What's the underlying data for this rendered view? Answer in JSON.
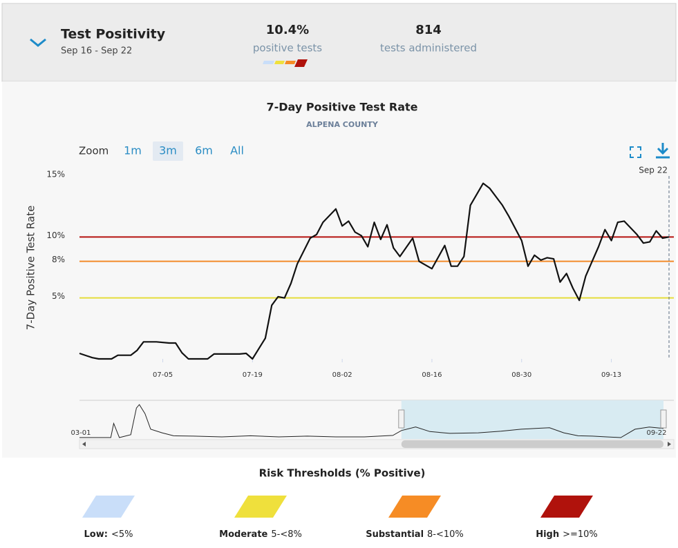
{
  "header": {
    "title": "Test Positivity",
    "date_range": "Sep 16 - Sep 22",
    "stats": [
      {
        "value": "10.4%",
        "label": "positive tests"
      },
      {
        "value": "814",
        "label": "tests administered"
      }
    ]
  },
  "chart_data": {
    "type": "line",
    "title": "7-Day Positive Test Rate",
    "subtitle": "ALPENA COUNTY",
    "y_label": "7-Day Positive Test Rate",
    "zoom": {
      "label": "Zoom",
      "options": [
        "1m",
        "3m",
        "6m",
        "All"
      ],
      "selected": 1
    },
    "crosshair_label": "Sep 22",
    "x": [
      "06-22",
      "06-24",
      "06-25",
      "06-27",
      "06-28",
      "06-30",
      "07-01",
      "07-02",
      "07-04",
      "07-06",
      "07-07",
      "07-08",
      "07-09",
      "07-12",
      "07-13",
      "07-17",
      "07-18",
      "07-19",
      "07-21",
      "07-22",
      "07-23",
      "07-24",
      "07-25",
      "07-26",
      "07-28",
      "07-29",
      "07-30",
      "08-01",
      "08-02",
      "08-03",
      "08-04",
      "08-05",
      "08-06",
      "08-07",
      "08-08",
      "08-09",
      "08-10",
      "08-11",
      "08-13",
      "08-14",
      "08-16",
      "08-18",
      "08-19",
      "08-20",
      "08-21",
      "08-22",
      "08-24",
      "08-25",
      "08-27",
      "08-28",
      "08-30",
      "08-31",
      "09-01",
      "09-02",
      "09-03",
      "09-04",
      "09-05",
      "09-06",
      "09-07",
      "09-08",
      "09-09",
      "09-11",
      "09-12",
      "09-13",
      "09-14",
      "09-15",
      "09-17",
      "09-18",
      "09-19",
      "09-20",
      "09-21",
      "09-22"
    ],
    "series": [
      {
        "color": "#111111",
        "values": [
          0.45,
          0.1,
          0,
          0,
          0.3,
          0.3,
          0.7,
          1.4,
          1.4,
          1.3,
          1.3,
          0.5,
          0,
          0,
          0.4,
          0.4,
          0.45,
          0,
          1.7,
          4.4,
          5.1,
          5.0,
          6.2,
          7.8,
          9.9,
          10.2,
          11.2,
          12.3,
          10.9,
          11.3,
          10.4,
          10.1,
          9.2,
          11.2,
          9.8,
          11.0,
          9.1,
          8.4,
          9.9,
          8.0,
          7.4,
          9.3,
          7.6,
          7.6,
          8.4,
          12.6,
          14.4,
          14.0,
          12.6,
          11.7,
          9.7,
          7.6,
          8.5,
          8.1,
          8.3,
          8.2,
          6.3,
          7.0,
          5.8,
          4.8,
          6.8,
          9.2,
          10.6,
          9.7,
          11.2,
          11.3,
          10.2,
          9.5,
          9.6,
          10.5,
          9.9,
          10.0
        ]
      }
    ],
    "xlim": [
      "06-22",
      "09-22"
    ],
    "xticks": [
      "07-05",
      "07-19",
      "08-02",
      "08-16",
      "08-30",
      "09-13"
    ],
    "ylim": [
      0,
      15
    ],
    "yticks": [
      {
        "value": 5,
        "label": "5%"
      },
      {
        "value": 8,
        "label": "8%"
      },
      {
        "value": 10,
        "label": "10%"
      },
      {
        "value": 15,
        "label": "15%"
      }
    ],
    "threshold_lines": [
      {
        "value": 5,
        "color": "#e5dd3a"
      },
      {
        "value": 8,
        "color": "#f28a2a"
      },
      {
        "value": 10,
        "color": "#b5120f"
      }
    ],
    "navigator": {
      "x": [
        "03-01",
        "03-12",
        "03-13",
        "03-15",
        "03-19",
        "03-21",
        "03-22",
        "03-24",
        "03-26",
        "03-30",
        "04-03",
        "04-10",
        "04-20",
        "04-30",
        "05-10",
        "05-20",
        "05-30",
        "06-09",
        "06-19",
        "06-22",
        "06-27",
        "07-02",
        "07-09",
        "07-19",
        "07-27",
        "08-03",
        "08-08",
        "08-13",
        "08-18",
        "08-23",
        "08-28",
        "09-02",
        "09-07",
        "09-12",
        "09-17",
        "09-22"
      ],
      "values": [
        0,
        0,
        11.8,
        0,
        2.4,
        24.7,
        27.6,
        20,
        7,
        4,
        1.5,
        1.2,
        0.6,
        1.5,
        0.6,
        1.2,
        0.6,
        0.6,
        1.8,
        5.9,
        8.8,
        5,
        3.5,
        4,
        5.3,
        7,
        7.6,
        8.2,
        4,
        1.5,
        1.2,
        0.6,
        0,
        7,
        8.8,
        7.6
      ],
      "xlim": [
        "03-01",
        "09-22"
      ],
      "ylim": [
        0,
        30
      ],
      "color": "#222222",
      "edge_labels": [
        "03-01",
        "09-22"
      ]
    }
  },
  "legend": {
    "title": "Risk Thresholds (% Positive)",
    "items": [
      {
        "name": "Low:",
        "range": "<5%",
        "color": "#c9def9"
      },
      {
        "name": "Moderate",
        "range": "5-<8%",
        "color": "#efe03c"
      },
      {
        "name": "Substantial",
        "range": "8-<10%",
        "color": "#f68c25"
      },
      {
        "name": "High",
        "range": ">=10%",
        "color": "#b0120c"
      }
    ]
  }
}
